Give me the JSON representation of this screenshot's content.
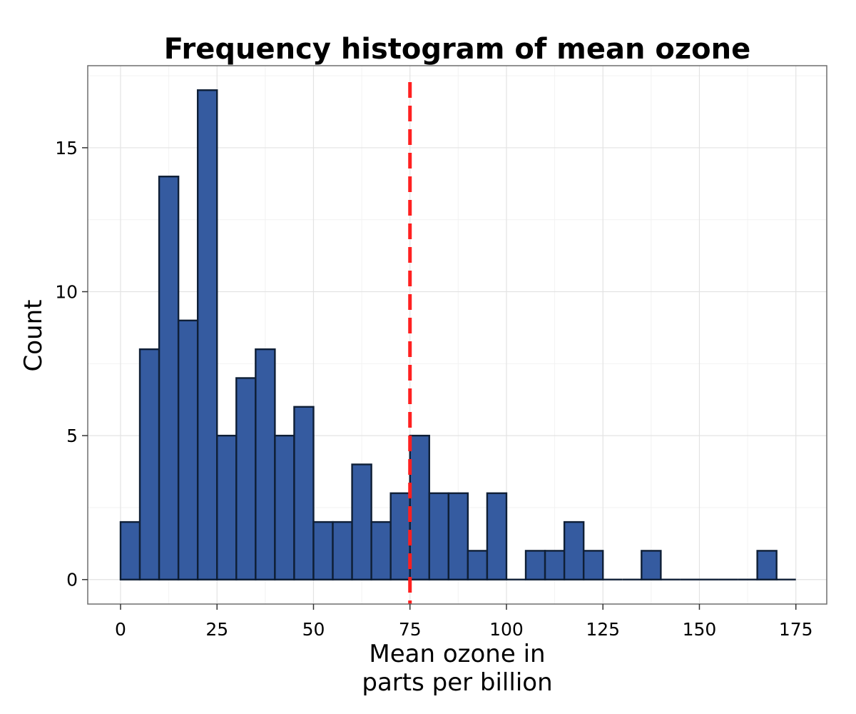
{
  "chart_data": {
    "type": "bar",
    "title": "Frequency histogram of mean ozone",
    "xlabel": "Mean ozone in\nparts per billion",
    "ylabel": "Count",
    "xlim": [
      -8.5,
      183
    ],
    "ylim": [
      -0.85,
      17.85
    ],
    "bin_width": 5,
    "bins": [
      {
        "x0": 0,
        "x1": 5,
        "count": 2
      },
      {
        "x0": 5,
        "x1": 10,
        "count": 8
      },
      {
        "x0": 10,
        "x1": 15,
        "count": 14
      },
      {
        "x0": 15,
        "x1": 20,
        "count": 9
      },
      {
        "x0": 20,
        "x1": 25,
        "count": 17
      },
      {
        "x0": 25,
        "x1": 30,
        "count": 5
      },
      {
        "x0": 30,
        "x1": 35,
        "count": 7
      },
      {
        "x0": 35,
        "x1": 40,
        "count": 8
      },
      {
        "x0": 40,
        "x1": 45,
        "count": 5
      },
      {
        "x0": 45,
        "x1": 50,
        "count": 6
      },
      {
        "x0": 50,
        "x1": 55,
        "count": 2
      },
      {
        "x0": 55,
        "x1": 60,
        "count": 2
      },
      {
        "x0": 60,
        "x1": 65,
        "count": 4
      },
      {
        "x0": 65,
        "x1": 70,
        "count": 2
      },
      {
        "x0": 70,
        "x1": 75,
        "count": 3
      },
      {
        "x0": 75,
        "x1": 80,
        "count": 5
      },
      {
        "x0": 80,
        "x1": 85,
        "count": 3
      },
      {
        "x0": 85,
        "x1": 90,
        "count": 3
      },
      {
        "x0": 90,
        "x1": 95,
        "count": 1
      },
      {
        "x0": 95,
        "x1": 100,
        "count": 3
      },
      {
        "x0": 100,
        "x1": 105,
        "count": 0
      },
      {
        "x0": 105,
        "x1": 110,
        "count": 1
      },
      {
        "x0": 110,
        "x1": 115,
        "count": 1
      },
      {
        "x0": 115,
        "x1": 120,
        "count": 2
      },
      {
        "x0": 120,
        "x1": 125,
        "count": 1
      },
      {
        "x0": 125,
        "x1": 130,
        "count": 0
      },
      {
        "x0": 130,
        "x1": 135,
        "count": 0
      },
      {
        "x0": 135,
        "x1": 140,
        "count": 1
      },
      {
        "x0": 140,
        "x1": 145,
        "count": 0
      },
      {
        "x0": 145,
        "x1": 150,
        "count": 0
      },
      {
        "x0": 150,
        "x1": 155,
        "count": 0
      },
      {
        "x0": 155,
        "x1": 160,
        "count": 0
      },
      {
        "x0": 160,
        "x1": 165,
        "count": 0
      },
      {
        "x0": 165,
        "x1": 170,
        "count": 1
      },
      {
        "x0": 170,
        "x1": 175,
        "count": 0
      }
    ],
    "x_ticks": [
      0,
      25,
      50,
      75,
      100,
      125,
      150,
      175
    ],
    "y_ticks": [
      0,
      5,
      10,
      15
    ],
    "mean_line": {
      "x": 75,
      "style": "dashed",
      "color": "#ff2020"
    },
    "grid": true,
    "colors": {
      "bar_fill": "#355ba0",
      "bar_outline": "#0f1f36",
      "panel_background": "#ffffff",
      "grid_major": "#e3e3e3",
      "grid_minor": "#f2f2f2",
      "panel_border": "#6e6e6e"
    }
  }
}
